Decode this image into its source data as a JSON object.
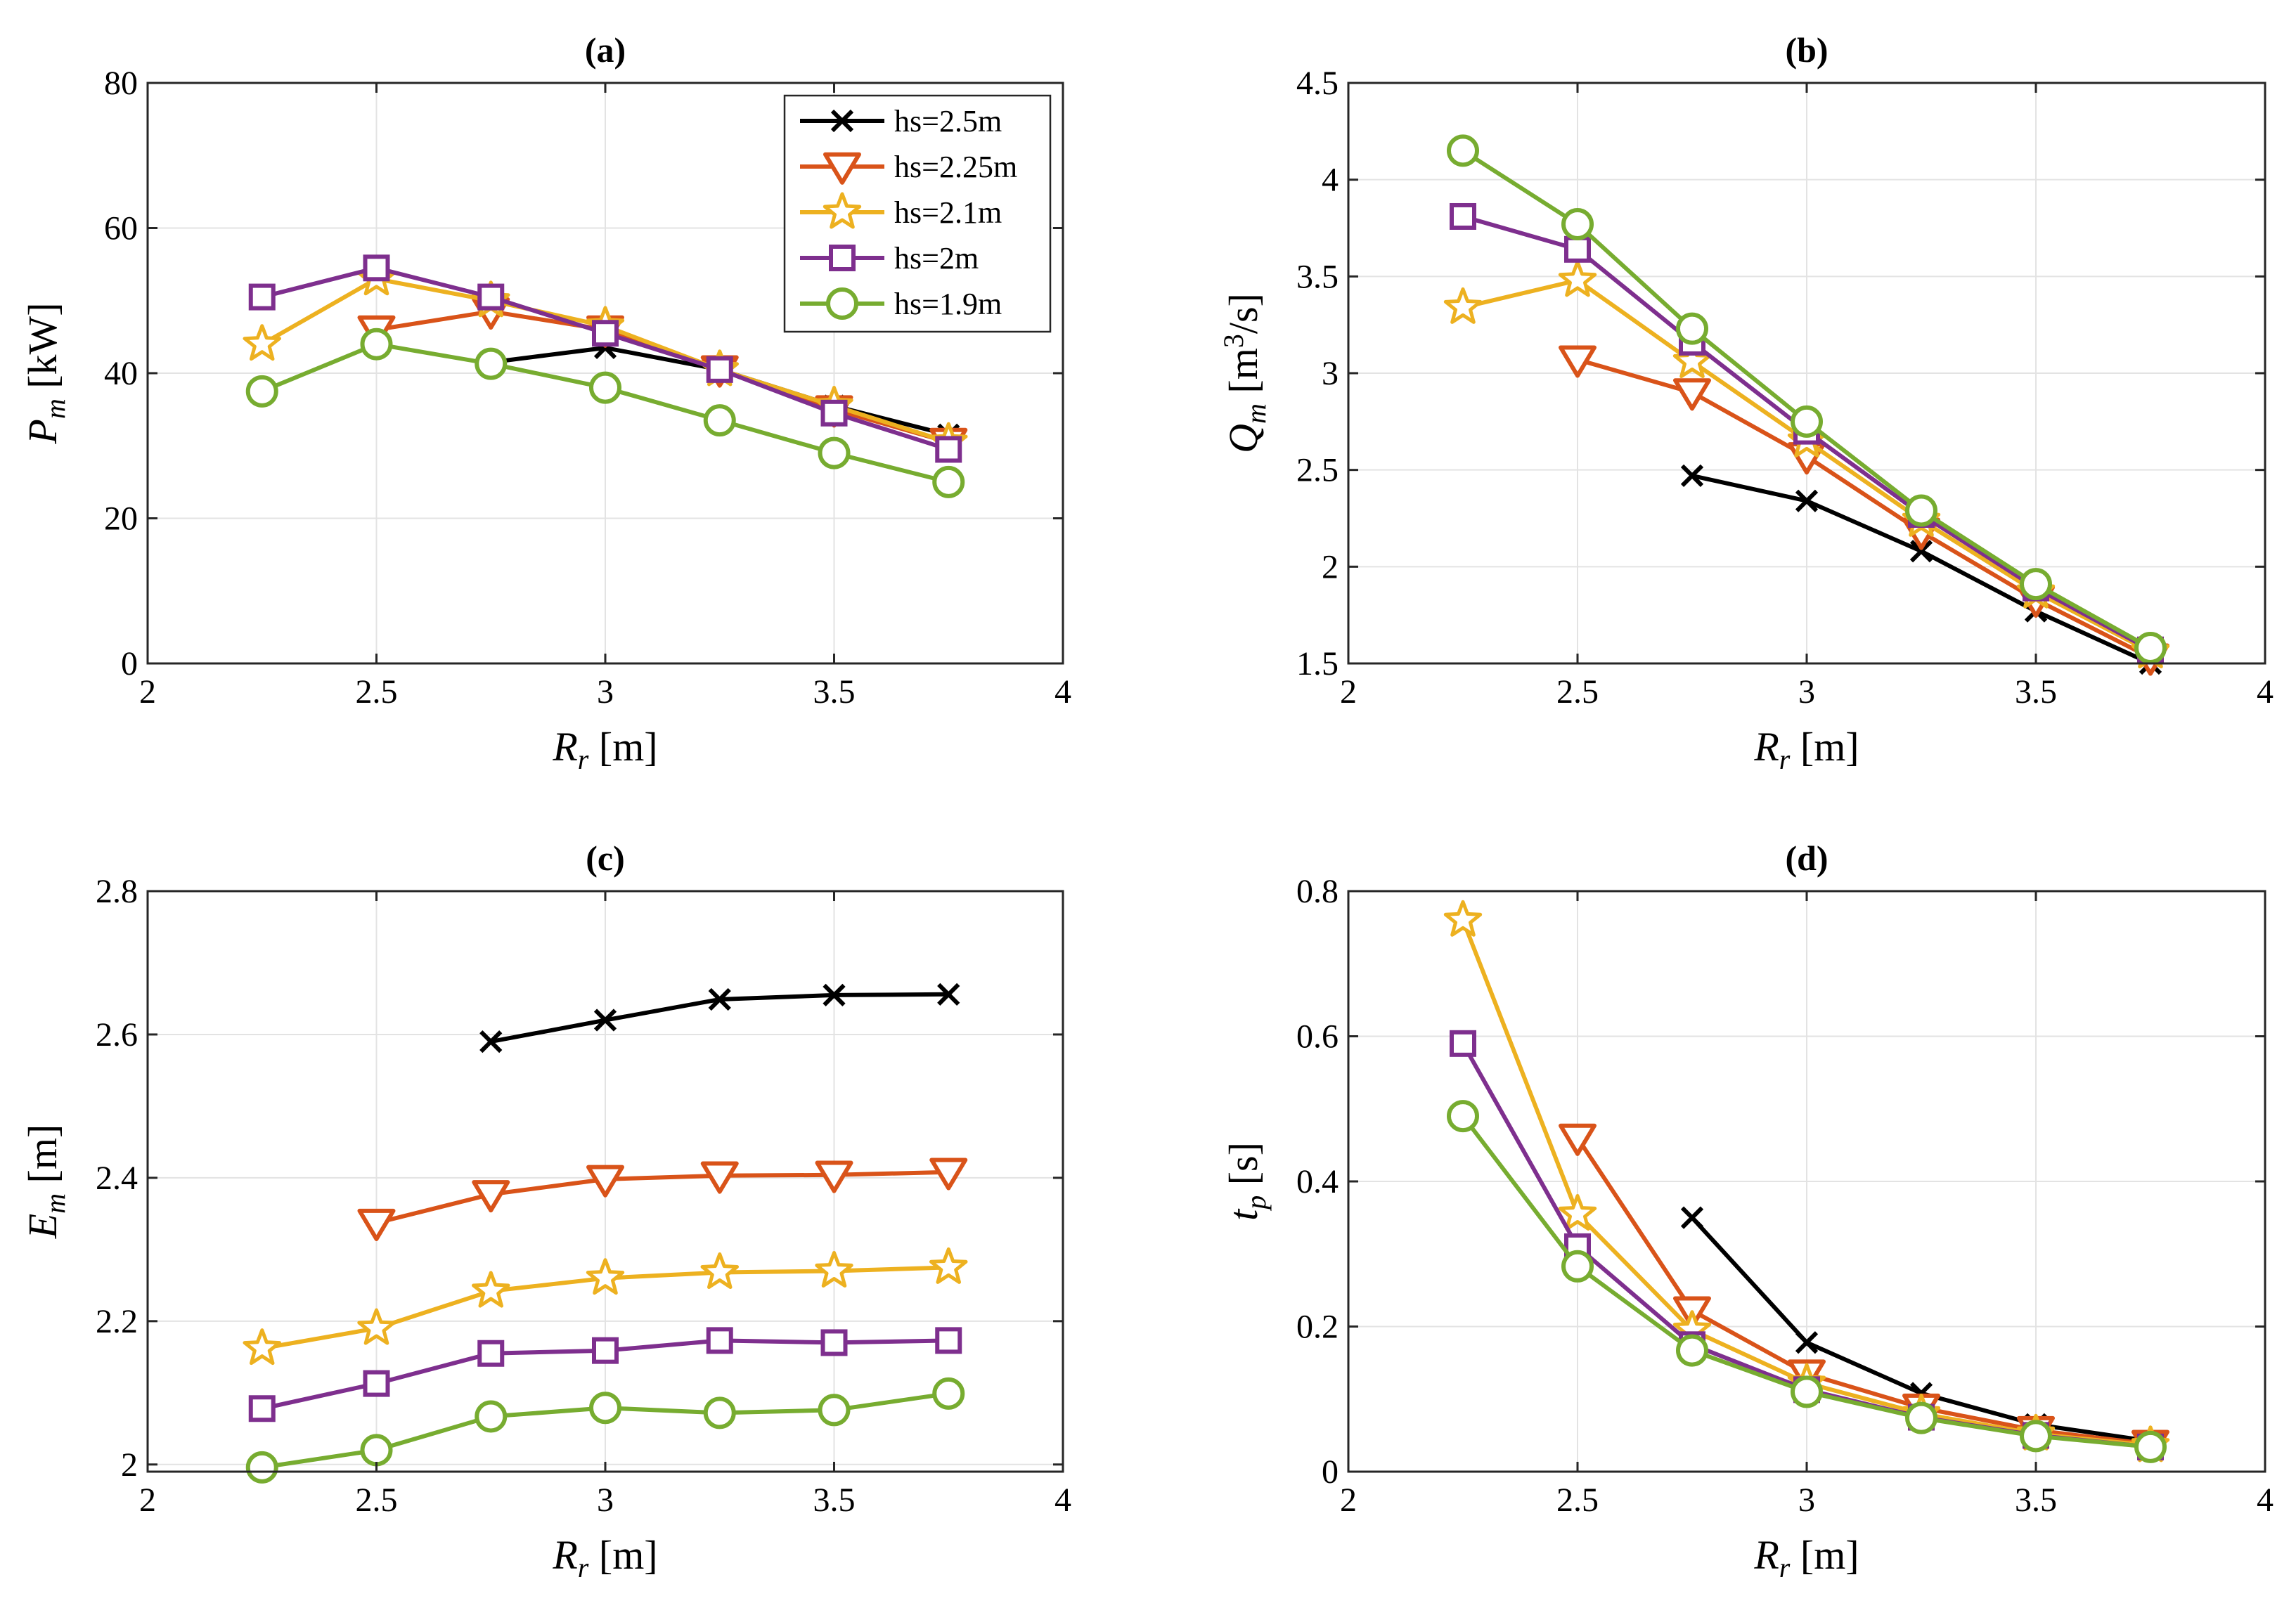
{
  "figure": {
    "panels": 4
  },
  "legend": {
    "location": "top-right of panel (a)",
    "entries": [
      "hs=2.5m",
      "hs=2.25m",
      "hs=2.1m",
      "hs=2m",
      "hs=1.9m"
    ]
  },
  "series_style": [
    {
      "name": "hs=2.5m",
      "color": "#000000",
      "marker": "x-mark"
    },
    {
      "name": "hs=2.25m",
      "color": "#D95319",
      "marker": "triangle-down"
    },
    {
      "name": "hs=2.1m",
      "color": "#EDB120",
      "marker": "star"
    },
    {
      "name": "hs=2m",
      "color": "#7E2F8E",
      "marker": "square"
    },
    {
      "name": "hs=1.9m",
      "color": "#77AC30",
      "marker": "circle"
    }
  ],
  "chart_data": [
    {
      "type": "line",
      "title": "(a)",
      "xlabel": {
        "main": "R",
        "sub": "r",
        "unit": " [m]"
      },
      "ylabel": {
        "main": "P",
        "sub": "m",
        "unit": " [kW]"
      },
      "xlim": [
        2,
        4
      ],
      "ylim": [
        0,
        80
      ],
      "xticks": [
        "2",
        "2.5",
        "3",
        "3.5",
        "4"
      ],
      "yticks": [
        "0",
        "20",
        "40",
        "60",
        "80"
      ],
      "grid": true,
      "legend": true,
      "series": [
        {
          "name": "hs=2.5m",
          "x": [
            2.75,
            3.0,
            3.25,
            3.5,
            3.75
          ],
          "y": [
            41.5,
            43.5,
            40.5,
            35.5,
            31.5
          ]
        },
        {
          "name": "hs=2.25m",
          "x": [
            2.5,
            2.75,
            3.0,
            3.25,
            3.5,
            3.75
          ],
          "y": [
            46.0,
            48.5,
            46.0,
            40.5,
            35.0,
            30.5
          ]
        },
        {
          "name": "hs=2.1m",
          "x": [
            2.25,
            2.5,
            2.75,
            3.0,
            3.25,
            3.5,
            3.75
          ],
          "y": [
            44.0,
            53.0,
            50.0,
            46.5,
            40.5,
            35.5,
            30.5
          ]
        },
        {
          "name": "hs=2m",
          "x": [
            2.25,
            2.5,
            2.75,
            3.0,
            3.25,
            3.5,
            3.75
          ],
          "y": [
            50.5,
            54.5,
            50.5,
            45.5,
            40.5,
            34.5,
            29.5
          ]
        },
        {
          "name": "hs=1.9m",
          "x": [
            2.25,
            2.5,
            2.75,
            3.0,
            3.25,
            3.5,
            3.75
          ],
          "y": [
            37.5,
            44.0,
            41.3,
            38.0,
            33.5,
            29.0,
            25.0
          ]
        }
      ]
    },
    {
      "type": "line",
      "title": "(b)",
      "xlabel": {
        "main": "R",
        "sub": "r",
        "unit": " [m]"
      },
      "ylabel": {
        "main": "Q",
        "sub": "m",
        "unit": " [m",
        "sup": "3",
        "unit2": "/s]"
      },
      "xlim": [
        2,
        4
      ],
      "ylim": [
        1.5,
        4.5
      ],
      "xticks": [
        "2",
        "2.5",
        "3",
        "3.5",
        "4"
      ],
      "yticks": [
        "1.5",
        "2",
        "2.5",
        "3",
        "3.5",
        "4",
        "4.5"
      ],
      "grid": true,
      "legend": false,
      "series": [
        {
          "name": "hs=2.5m",
          "x": [
            2.75,
            3.0,
            3.25,
            3.5,
            3.75
          ],
          "y": [
            2.47,
            2.34,
            2.08,
            1.77,
            1.5
          ]
        },
        {
          "name": "hs=2.25m",
          "x": [
            2.5,
            2.75,
            3.0,
            3.25,
            3.5,
            3.75
          ],
          "y": [
            3.07,
            2.9,
            2.57,
            2.18,
            1.83,
            1.53
          ]
        },
        {
          "name": "hs=2.1m",
          "x": [
            2.25,
            2.5,
            2.75,
            3.0,
            3.25,
            3.5,
            3.75
          ],
          "y": [
            3.34,
            3.48,
            3.06,
            2.65,
            2.24,
            1.87,
            1.56
          ]
        },
        {
          "name": "hs=2m",
          "x": [
            2.25,
            2.5,
            2.75,
            3.0,
            3.25,
            3.5,
            3.75
          ],
          "y": [
            3.81,
            3.64,
            3.16,
            2.7,
            2.27,
            1.89,
            1.57
          ]
        },
        {
          "name": "hs=1.9m",
          "x": [
            2.25,
            2.5,
            2.75,
            3.0,
            3.25,
            3.5,
            3.75
          ],
          "y": [
            4.15,
            3.77,
            3.23,
            2.75,
            2.29,
            1.91,
            1.58
          ]
        }
      ]
    },
    {
      "type": "line",
      "title": "(c)",
      "xlabel": {
        "main": "R",
        "sub": "r",
        "unit": " [m]"
      },
      "ylabel": {
        "main": "E",
        "sub": "m",
        "unit": " [m]"
      },
      "xlim": [
        2,
        4
      ],
      "ylim": [
        1.99,
        2.8
      ],
      "xticks": [
        "2",
        "2.5",
        "3",
        "3.5",
        "4"
      ],
      "yticks": [
        "2",
        "2.2",
        "2.4",
        "2.6",
        "2.8"
      ],
      "grid": true,
      "legend": false,
      "series": [
        {
          "name": "hs=2.5m",
          "x": [
            2.75,
            3.0,
            3.25,
            3.5,
            3.75
          ],
          "y": [
            2.59,
            2.62,
            2.649,
            2.655,
            2.656
          ]
        },
        {
          "name": "hs=2.25m",
          "x": [
            2.5,
            2.75,
            3.0,
            3.25,
            3.5,
            3.75
          ],
          "y": [
            2.337,
            2.377,
            2.398,
            2.403,
            2.404,
            2.408
          ]
        },
        {
          "name": "hs=2.1m",
          "x": [
            2.25,
            2.5,
            2.75,
            3.0,
            3.25,
            3.5,
            3.75
          ],
          "y": [
            2.162,
            2.19,
            2.242,
            2.26,
            2.268,
            2.27,
            2.275
          ]
        },
        {
          "name": "hs=2m",
          "x": [
            2.25,
            2.5,
            2.75,
            3.0,
            3.25,
            3.5,
            3.75
          ],
          "y": [
            2.078,
            2.113,
            2.155,
            2.159,
            2.173,
            2.17,
            2.173
          ]
        },
        {
          "name": "hs=1.9m",
          "x": [
            2.25,
            2.5,
            2.75,
            3.0,
            3.25,
            3.5,
            3.75
          ],
          "y": [
            1.996,
            2.02,
            2.067,
            2.079,
            2.072,
            2.076,
            2.099
          ]
        }
      ]
    },
    {
      "type": "line",
      "title": "(d)",
      "xlabel": {
        "main": "R",
        "sub": "r",
        "unit": " [m]"
      },
      "ylabel": {
        "main": "t",
        "sub": "p",
        "unit": " [s]"
      },
      "xlim": [
        2,
        4
      ],
      "ylim": [
        0,
        0.8
      ],
      "xticks": [
        "2",
        "2.5",
        "3",
        "3.5",
        "4"
      ],
      "yticks": [
        "0",
        "0.2",
        "0.4",
        "0.6",
        "0.8"
      ],
      "grid": true,
      "legend": false,
      "series": [
        {
          "name": "hs=2.5m",
          "x": [
            2.75,
            3.0,
            3.25,
            3.5,
            3.75
          ],
          "y": [
            0.35,
            0.178,
            0.108,
            0.065,
            0.042
          ]
        },
        {
          "name": "hs=2.25m",
          "x": [
            2.5,
            2.75,
            3.0,
            3.25,
            3.5,
            3.75
          ],
          "y": [
            0.46,
            0.222,
            0.135,
            0.088,
            0.057,
            0.038
          ]
        },
        {
          "name": "hs=2.1m",
          "x": [
            2.25,
            2.5,
            2.75,
            3.0,
            3.25,
            3.5,
            3.75
          ],
          "y": [
            0.76,
            0.355,
            0.195,
            0.122,
            0.08,
            0.052,
            0.036
          ]
        },
        {
          "name": "hs=2m",
          "x": [
            2.25,
            2.5,
            2.75,
            3.0,
            3.25,
            3.5,
            3.75
          ],
          "y": [
            0.59,
            0.31,
            0.175,
            0.113,
            0.075,
            0.05,
            0.034
          ]
        },
        {
          "name": "hs=1.9m",
          "x": [
            2.25,
            2.5,
            2.75,
            3.0,
            3.25,
            3.5,
            3.75
          ],
          "y": [
            0.49,
            0.283,
            0.167,
            0.11,
            0.074,
            0.049,
            0.034
          ]
        }
      ]
    }
  ]
}
